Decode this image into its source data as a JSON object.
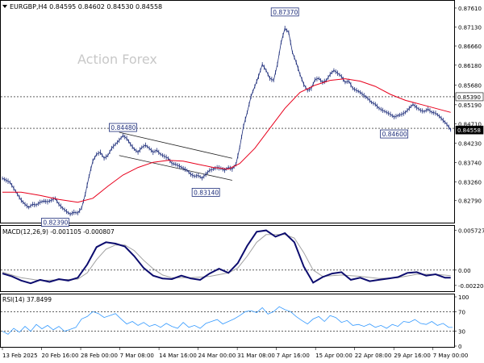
{
  "chart_data": [
    {
      "type": "line",
      "panel": "price",
      "header": "EURGBP,H4  0.84595 0.84602 0.84530 0.84558",
      "watermark": "Action Forex",
      "ylim": [
        0.8228,
        0.8771
      ],
      "y_ticks": [
        "0.87610",
        "0.87130",
        "0.86660",
        "0.86180",
        "0.85680",
        "0.85190",
        "0.84710",
        "0.84230",
        "0.83740",
        "0.83260",
        "0.82790"
      ],
      "x_ticks": [
        "13 Feb 2025",
        "20 Feb 16:00",
        "28 Feb 00:00",
        "7 Mar 08:00",
        "14 Mar 16:00",
        "24 Mar 00:00",
        "31 Mar 08:00",
        "7 Apr 16:00",
        "15 Apr 00:00",
        "22 Apr 08:00",
        "29 Apr 16:00",
        "7 May 00:00"
      ],
      "close_series": [
        [
          0,
          0.8335
        ],
        [
          2,
          0.833
        ],
        [
          4,
          0.8325
        ],
        [
          6,
          0.831
        ],
        [
          8,
          0.8295
        ],
        [
          10,
          0.828
        ],
        [
          12,
          0.827
        ],
        [
          14,
          0.8262
        ],
        [
          16,
          0.827
        ],
        [
          18,
          0.8268
        ],
        [
          20,
          0.8275
        ],
        [
          22,
          0.8278
        ],
        [
          24,
          0.8276
        ],
        [
          26,
          0.828
        ],
        [
          28,
          0.8285
        ],
        [
          30,
          0.827
        ],
        [
          32,
          0.826
        ],
        [
          34,
          0.8252
        ],
        [
          36,
          0.8245
        ],
        [
          38,
          0.825
        ],
        [
          40,
          0.8248
        ],
        [
          42,
          0.826
        ],
        [
          44,
          0.8295
        ],
        [
          46,
          0.834
        ],
        [
          48,
          0.8378
        ],
        [
          50,
          0.8395
        ],
        [
          52,
          0.84
        ],
        [
          54,
          0.8385
        ],
        [
          56,
          0.8392
        ],
        [
          58,
          0.841
        ],
        [
          60,
          0.842
        ],
        [
          62,
          0.843
        ],
        [
          64,
          0.8442
        ],
        [
          66,
          0.8435
        ],
        [
          68,
          0.842
        ],
        [
          70,
          0.8408
        ],
        [
          72,
          0.84
        ],
        [
          74,
          0.8412
        ],
        [
          76,
          0.8418
        ],
        [
          78,
          0.841
        ],
        [
          80,
          0.84
        ],
        [
          82,
          0.8405
        ],
        [
          84,
          0.8395
        ],
        [
          86,
          0.839
        ],
        [
          88,
          0.8385
        ],
        [
          90,
          0.8372
        ],
        [
          92,
          0.837
        ],
        [
          94,
          0.8365
        ],
        [
          96,
          0.836
        ],
        [
          98,
          0.8355
        ],
        [
          100,
          0.8345
        ],
        [
          102,
          0.834
        ],
        [
          104,
          0.8342
        ],
        [
          106,
          0.8335
        ],
        [
          108,
          0.8345
        ],
        [
          110,
          0.8355
        ],
        [
          112,
          0.8358
        ],
        [
          114,
          0.8362
        ],
        [
          116,
          0.836
        ],
        [
          118,
          0.8355
        ],
        [
          120,
          0.8362
        ],
        [
          122,
          0.8358
        ],
        [
          124,
          0.837
        ],
        [
          126,
          0.8412
        ],
        [
          128,
          0.8465
        ],
        [
          130,
          0.85
        ],
        [
          132,
          0.854
        ],
        [
          134,
          0.8565
        ],
        [
          136,
          0.859
        ],
        [
          138,
          0.862
        ],
        [
          140,
          0.8605
        ],
        [
          142,
          0.8585
        ],
        [
          144,
          0.858
        ],
        [
          146,
          0.862
        ],
        [
          148,
          0.8675
        ],
        [
          150,
          0.871
        ],
        [
          152,
          0.87
        ],
        [
          154,
          0.865
        ],
        [
          156,
          0.8625
        ],
        [
          158,
          0.8595
        ],
        [
          160,
          0.857
        ],
        [
          162,
          0.8555
        ],
        [
          164,
          0.856
        ],
        [
          166,
          0.8582
        ],
        [
          168,
          0.8585
        ],
        [
          170,
          0.8575
        ],
        [
          172,
          0.858
        ],
        [
          174,
          0.8595
        ],
        [
          176,
          0.8605
        ],
        [
          178,
          0.8598
        ],
        [
          180,
          0.859
        ],
        [
          182,
          0.8575
        ],
        [
          184,
          0.8578
        ],
        [
          186,
          0.856
        ],
        [
          188,
          0.8555
        ],
        [
          190,
          0.855
        ],
        [
          192,
          0.8542
        ],
        [
          194,
          0.8535
        ],
        [
          196,
          0.8525
        ],
        [
          198,
          0.852
        ],
        [
          200,
          0.851
        ],
        [
          202,
          0.8505
        ],
        [
          204,
          0.85
        ],
        [
          206,
          0.8495
        ],
        [
          208,
          0.8488
        ],
        [
          210,
          0.8492
        ],
        [
          212,
          0.8495
        ],
        [
          214,
          0.85
        ],
        [
          216,
          0.851
        ],
        [
          218,
          0.852
        ],
        [
          220,
          0.8512
        ],
        [
          222,
          0.8505
        ],
        [
          224,
          0.8502
        ],
        [
          226,
          0.8508
        ],
        [
          228,
          0.85
        ],
        [
          230,
          0.8498
        ],
        [
          232,
          0.849
        ],
        [
          234,
          0.848
        ],
        [
          236,
          0.847
        ],
        [
          238,
          0.8456
        ]
      ],
      "ma_series": [
        [
          0,
          0.83
        ],
        [
          10,
          0.83
        ],
        [
          20,
          0.8292
        ],
        [
          30,
          0.8282
        ],
        [
          40,
          0.8275
        ],
        [
          48,
          0.8285
        ],
        [
          56,
          0.8315
        ],
        [
          64,
          0.8343
        ],
        [
          72,
          0.8362
        ],
        [
          80,
          0.8375
        ],
        [
          88,
          0.838
        ],
        [
          96,
          0.8378
        ],
        [
          104,
          0.837
        ],
        [
          112,
          0.8362
        ],
        [
          120,
          0.8358
        ],
        [
          126,
          0.8372
        ],
        [
          134,
          0.841
        ],
        [
          142,
          0.846
        ],
        [
          150,
          0.851
        ],
        [
          158,
          0.855
        ],
        [
          166,
          0.8568
        ],
        [
          174,
          0.858
        ],
        [
          182,
          0.8584
        ],
        [
          190,
          0.8578
        ],
        [
          198,
          0.8565
        ],
        [
          206,
          0.8545
        ],
        [
          214,
          0.853
        ],
        [
          222,
          0.852
        ],
        [
          230,
          0.851
        ],
        [
          238,
          0.85
        ]
      ],
      "channel": {
        "upper": [
          [
            62,
            0.845
          ],
          [
            122,
            0.8385
          ]
        ],
        "lower": [
          [
            62,
            0.8392
          ],
          [
            122,
            0.833
          ]
        ]
      },
      "hlines": [
        0.8539,
        0.846
      ],
      "callouts": [
        {
          "label": "0.82390",
          "x": 28,
          "y": 0.8239,
          "anchor": "below"
        },
        {
          "label": "0.84480",
          "x": 64,
          "y": 0.8448,
          "anchor": "above"
        },
        {
          "label": "0.83140",
          "x": 108,
          "y": 0.8314,
          "anchor": "below"
        },
        {
          "label": "0.87370",
          "x": 150,
          "y": 0.8737,
          "anchor": "above"
        },
        {
          "label": "0.84600",
          "x": 208,
          "y": 0.846,
          "anchor": "below"
        }
      ],
      "price_tags": [
        {
          "label": "0.85390",
          "y": 0.8539,
          "style": "outline"
        },
        {
          "label": "0.84558",
          "y": 0.84558,
          "style": "filled"
        }
      ]
    },
    {
      "type": "line",
      "panel": "macd",
      "header": "MACD(12,26,9) -0.001105 -0.000807",
      "ylim": [
        -0.0028,
        0.006
      ],
      "y_ticks": [
        "0.005727",
        "0.00",
        "-0.002204"
      ],
      "macd_series": [
        [
          0,
          -0.0005
        ],
        [
          5,
          -0.0009
        ],
        [
          10,
          -0.0015
        ],
        [
          15,
          -0.0019
        ],
        [
          20,
          -0.0014
        ],
        [
          25,
          -0.0017
        ],
        [
          30,
          -0.0013
        ],
        [
          35,
          -0.0015
        ],
        [
          40,
          -0.0011
        ],
        [
          45,
          0.0008
        ],
        [
          50,
          0.0033
        ],
        [
          55,
          0.004
        ],
        [
          60,
          0.0038
        ],
        [
          65,
          0.0034
        ],
        [
          70,
          0.002
        ],
        [
          75,
          0.0003
        ],
        [
          80,
          -0.0008
        ],
        [
          85,
          -0.0012
        ],
        [
          90,
          -0.0013
        ],
        [
          95,
          -0.0008
        ],
        [
          100,
          -0.0012
        ],
        [
          105,
          -0.0014
        ],
        [
          110,
          -0.0005
        ],
        [
          115,
          0.0002
        ],
        [
          120,
          -0.0004
        ],
        [
          125,
          0.001
        ],
        [
          130,
          0.0035
        ],
        [
          135,
          0.0055
        ],
        [
          140,
          0.0057
        ],
        [
          145,
          0.0048
        ],
        [
          150,
          0.0053
        ],
        [
          155,
          0.004
        ],
        [
          160,
          0.0005
        ],
        [
          165,
          -0.0018
        ],
        [
          170,
          -0.001
        ],
        [
          175,
          -0.0005
        ],
        [
          180,
          -0.0003
        ],
        [
          185,
          -0.0014
        ],
        [
          190,
          -0.0011
        ],
        [
          195,
          -0.0016
        ],
        [
          200,
          -0.0014
        ],
        [
          205,
          -0.0012
        ],
        [
          210,
          -0.001
        ],
        [
          215,
          -0.0004
        ],
        [
          220,
          -0.0003
        ],
        [
          225,
          -0.0008
        ],
        [
          230,
          -0.0006
        ],
        [
          235,
          -0.0011
        ],
        [
          238,
          -0.0011
        ]
      ],
      "signal_series": [
        [
          0,
          -0.0003
        ],
        [
          10,
          -0.0011
        ],
        [
          20,
          -0.0015
        ],
        [
          30,
          -0.0014
        ],
        [
          40,
          -0.0013
        ],
        [
          45,
          -0.0004
        ],
        [
          50,
          0.0015
        ],
        [
          55,
          0.003
        ],
        [
          60,
          0.0036
        ],
        [
          65,
          0.0036
        ],
        [
          70,
          0.0028
        ],
        [
          75,
          0.0014
        ],
        [
          80,
          0.0002
        ],
        [
          85,
          -0.0007
        ],
        [
          90,
          -0.0011
        ],
        [
          100,
          -0.0011
        ],
        [
          110,
          -0.0009
        ],
        [
          120,
          -0.0004
        ],
        [
          125,
          0.0003
        ],
        [
          130,
          0.002
        ],
        [
          135,
          0.004
        ],
        [
          140,
          0.0051
        ],
        [
          145,
          0.0051
        ],
        [
          150,
          0.0051
        ],
        [
          155,
          0.0046
        ],
        [
          160,
          0.0025
        ],
        [
          165,
          0.0
        ],
        [
          170,
          -0.0009
        ],
        [
          180,
          -0.0007
        ],
        [
          190,
          -0.0009
        ],
        [
          200,
          -0.0012
        ],
        [
          210,
          -0.0011
        ],
        [
          220,
          -0.0006
        ],
        [
          230,
          -0.0006
        ],
        [
          238,
          -0.0008
        ]
      ]
    },
    {
      "type": "line",
      "panel": "rsi",
      "header": "RSI(14) 37.8499",
      "ylim": [
        0,
        100
      ],
      "y_ticks": [
        "100",
        "70",
        "30",
        "0"
      ],
      "levels": [
        70,
        30
      ],
      "rsi_series": [
        [
          0,
          30
        ],
        [
          3,
          24
        ],
        [
          6,
          36
        ],
        [
          9,
          28
        ],
        [
          12,
          40
        ],
        [
          15,
          30
        ],
        [
          18,
          44
        ],
        [
          21,
          35
        ],
        [
          24,
          42
        ],
        [
          27,
          33
        ],
        [
          30,
          40
        ],
        [
          33,
          30
        ],
        [
          36,
          34
        ],
        [
          39,
          38
        ],
        [
          42,
          55
        ],
        [
          45,
          60
        ],
        [
          48,
          70
        ],
        [
          51,
          66
        ],
        [
          54,
          58
        ],
        [
          57,
          62
        ],
        [
          60,
          66
        ],
        [
          63,
          55
        ],
        [
          66,
          45
        ],
        [
          69,
          50
        ],
        [
          72,
          42
        ],
        [
          75,
          48
        ],
        [
          78,
          40
        ],
        [
          81,
          44
        ],
        [
          84,
          38
        ],
        [
          87,
          46
        ],
        [
          90,
          40
        ],
        [
          93,
          36
        ],
        [
          96,
          48
        ],
        [
          99,
          38
        ],
        [
          102,
          42
        ],
        [
          105,
          36
        ],
        [
          108,
          46
        ],
        [
          111,
          50
        ],
        [
          114,
          54
        ],
        [
          117,
          45
        ],
        [
          120,
          50
        ],
        [
          123,
          55
        ],
        [
          126,
          62
        ],
        [
          129,
          70
        ],
        [
          132,
          72
        ],
        [
          135,
          68
        ],
        [
          138,
          78
        ],
        [
          141,
          65
        ],
        [
          144,
          70
        ],
        [
          147,
          80
        ],
        [
          150,
          74
        ],
        [
          153,
          70
        ],
        [
          156,
          60
        ],
        [
          159,
          52
        ],
        [
          162,
          45
        ],
        [
          165,
          55
        ],
        [
          168,
          60
        ],
        [
          171,
          50
        ],
        [
          174,
          62
        ],
        [
          177,
          58
        ],
        [
          180,
          48
        ],
        [
          183,
          52
        ],
        [
          186,
          42
        ],
        [
          189,
          44
        ],
        [
          192,
          40
        ],
        [
          195,
          45
        ],
        [
          198,
          38
        ],
        [
          201,
          42
        ],
        [
          204,
          36
        ],
        [
          207,
          44
        ],
        [
          210,
          40
        ],
        [
          213,
          50
        ],
        [
          216,
          48
        ],
        [
          219,
          54
        ],
        [
          222,
          46
        ],
        [
          225,
          44
        ],
        [
          228,
          50
        ],
        [
          231,
          42
        ],
        [
          234,
          46
        ],
        [
          237,
          38
        ],
        [
          239,
          37.8
        ]
      ]
    }
  ]
}
